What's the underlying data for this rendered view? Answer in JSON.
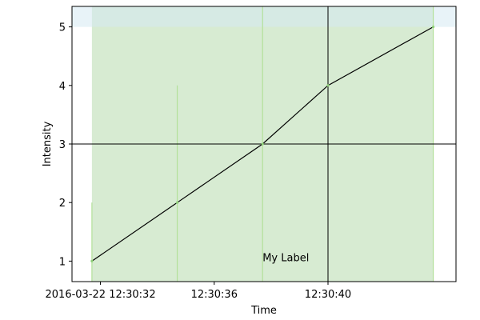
{
  "chart_data": {
    "type": "line",
    "title": "",
    "xlabel": "Time",
    "ylabel": "Intensity",
    "x_is_time": true,
    "xlim": [
      "2016-03-22 12:30:31.0",
      "2016-03-22 12:30:44.5"
    ],
    "ylim": [
      0.65,
      5.35
    ],
    "x_ticks": [
      {
        "value": "2016-03-22 12:30:32",
        "label": "2016-03-22 12:30:32"
      },
      {
        "value": "2016-03-22 12:30:36",
        "label": "12:30:36"
      },
      {
        "value": "2016-03-22 12:30:40",
        "label": "12:30:40"
      }
    ],
    "y_ticks": [
      1,
      2,
      3,
      4,
      5
    ],
    "grid": false,
    "series": [
      {
        "color": "#000000",
        "x": [
          "2016-03-22 12:30:31.7",
          "2016-03-22 12:30:34.7",
          "2016-03-22 12:30:37.7",
          "2016-03-22 12:30:40.0",
          "2016-03-22 12:30:43.7"
        ],
        "y": [
          1,
          2,
          3,
          4,
          5
        ]
      }
    ],
    "vertical_markers": [
      {
        "x": "2016-03-22 12:30:31.7",
        "y_from": 0.65,
        "y_to": 2.0,
        "color": "#b3e09a"
      },
      {
        "x": "2016-03-22 12:30:34.7",
        "y_from": 0.65,
        "y_to": 4.0,
        "color": "#b3e09a"
      },
      {
        "x": "2016-03-22 12:30:37.7",
        "y_from": 0.65,
        "y_to": 5.35,
        "color": "#b3e09a"
      },
      {
        "x": "2016-03-22 12:30:43.7",
        "y_from": 0.65,
        "y_to": 5.35,
        "color": "#b3e09a"
      }
    ],
    "reference_lines": {
      "vertical_x": "2016-03-22 12:30:40.0",
      "horizontal_y": 3,
      "color": "#000000"
    },
    "shaded_spans": {
      "x_span": {
        "from": "2016-03-22 12:30:31.7",
        "to": "2016-03-22 12:30:43.7",
        "color": "#d7ebd2"
      },
      "y_span": {
        "from": 5.0,
        "to": 5.35,
        "color": "#d6eaf3"
      }
    },
    "annotations": [
      {
        "text": "My Label",
        "x": "2016-03-22 12:30:37.7",
        "y": 1.0
      }
    ]
  }
}
